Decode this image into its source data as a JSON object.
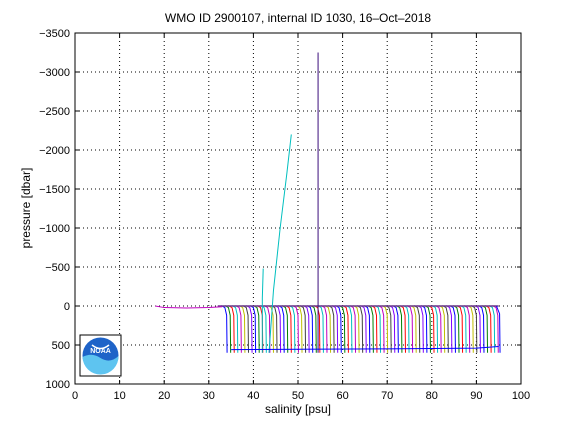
{
  "chart_data": {
    "type": "line",
    "title": "WMO ID 2900107, internal ID 1030, 16–Oct–2018",
    "xlabel": "salinity [psu]",
    "ylabel": "pressure [dbar]",
    "xlim": [
      0,
      100
    ],
    "ylim": [
      -3500,
      1000
    ],
    "y_reversed": true,
    "grid": true,
    "x_ticks": [
      0,
      10,
      20,
      30,
      40,
      50,
      60,
      70,
      80,
      90,
      100
    ],
    "x_tick_labels": [
      "0",
      "10",
      "20",
      "30",
      "40",
      "50",
      "60",
      "70",
      "80",
      "90",
      "100"
    ],
    "y_ticks": [
      -3500,
      -3000,
      -2500,
      -2000,
      -1500,
      -1000,
      -500,
      0,
      500,
      1000
    ],
    "y_tick_labels": [
      "−3500",
      "−3000",
      "−2500",
      "−2000",
      "−1500",
      "−1000",
      "−500",
      "0",
      "500",
      "1000"
    ],
    "series": [
      {
        "color": "#00bfbf",
        "x": [
          43.5,
          44.5,
          46.0,
          47.5,
          48.5
        ],
        "y": [
          600,
          -200,
          -1000,
          -1700,
          -2200
        ]
      },
      {
        "color": "#00bfbf",
        "x": [
          42.0,
          42.0,
          42.2
        ],
        "y": [
          600,
          -100,
          -480
        ]
      },
      {
        "color": "#3a0d7a",
        "x": [
          54.5,
          54.5
        ],
        "y": [
          600,
          -3250
        ]
      },
      {
        "color": "#bf00bf",
        "x": [
          18.0,
          20.0,
          25.0,
          30.0,
          33.0
        ],
        "y": [
          0,
          20,
          25,
          20,
          10
        ]
      },
      {
        "color": "#0000ff",
        "x": [
          35.0,
          50.0,
          70.0,
          90.0,
          95.0
        ],
        "y": [
          560,
          555,
          550,
          540,
          520
        ]
      },
      {
        "color": "#0000ff",
        "x": [
          94.5,
          95.2,
          95.3
        ],
        "y": [
          0,
          100,
          600
        ]
      }
    ],
    "profile_band": {
      "x_start": 34.0,
      "x_end": 95.0,
      "x_step": 0.8,
      "p_surface": 0,
      "p_bottom": 600,
      "colors": [
        "#0000ff",
        "#008000",
        "#ff0000",
        "#00bfbf",
        "#bf00bf",
        "#bfbf00",
        "#404040",
        "#8000ff"
      ]
    }
  },
  "logo": {
    "text": "NOAA"
  }
}
